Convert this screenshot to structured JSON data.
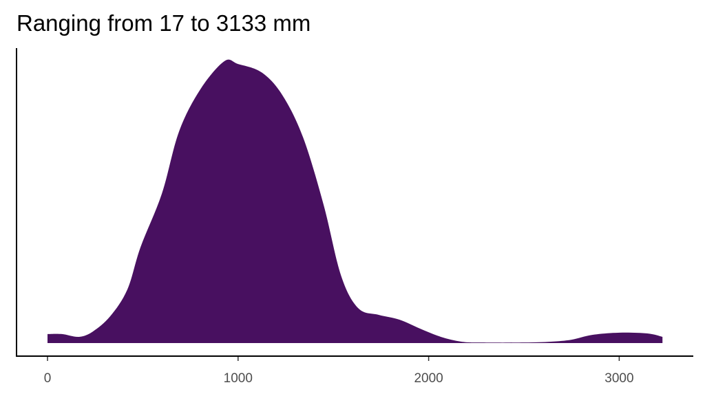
{
  "chart_data": {
    "type": "area",
    "title": "Ranging from 17 to 3133 mm",
    "xlabel": "",
    "ylabel": "",
    "xlim": [
      -165,
      3400
    ],
    "x_ticks": [
      0,
      1000,
      2000,
      3000
    ],
    "x_tick_labels": [
      "0",
      "1000",
      "2000",
      "3000"
    ],
    "y_ticks_shown": false,
    "grid": false,
    "fill_color": "#481060",
    "series": [
      {
        "x": [
          0,
          76,
          166,
          238,
          329,
          419,
          488,
          600,
          690,
          802,
          928,
          1000,
          1124,
          1232,
          1341,
          1449,
          1540,
          1630,
          1738,
          1847,
          1956,
          2064,
          2172,
          2280,
          2500,
          2641,
          2750,
          2858,
          3003,
          3148,
          3227
        ],
        "y": [
          0.032,
          0.032,
          0.022,
          0.041,
          0.095,
          0.19,
          0.34,
          0.53,
          0.75,
          0.9,
          1.0,
          0.99,
          0.96,
          0.88,
          0.73,
          0.49,
          0.24,
          0.124,
          0.1,
          0.083,
          0.051,
          0.022,
          0.005,
          0.002,
          0.002,
          0.005,
          0.012,
          0.029,
          0.037,
          0.034,
          0.022
        ]
      }
    ]
  }
}
